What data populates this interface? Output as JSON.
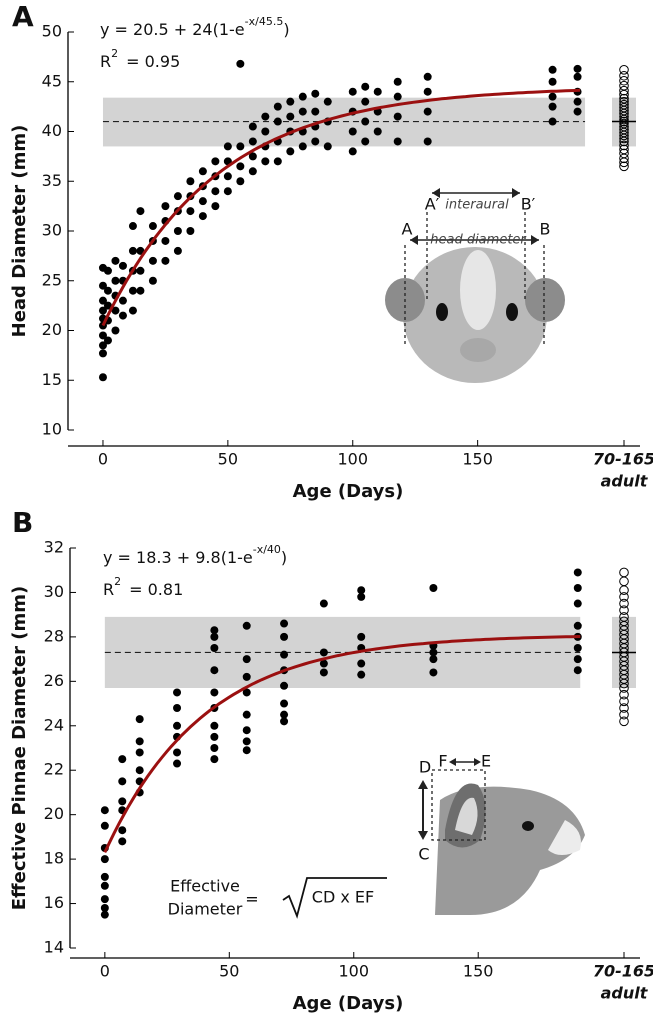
{
  "chart_data": [
    {
      "type": "scatter",
      "panel_label": "A",
      "equation": "y = 20.5 + 24(1-e",
      "equation_exp": "-x/45.5",
      "equation_end": ")",
      "r2_label": "R",
      "r2_sup": "2",
      "r2_value": "= 0.95",
      "xlabel": "Age (Days)",
      "ylabel": "Head Diameter (mm)",
      "xlim": [
        -14,
        215
      ],
      "ylim": [
        10,
        50
      ],
      "xticks": [
        0,
        50,
        100,
        150
      ],
      "yticks": [
        10,
        15,
        20,
        25,
        30,
        35,
        40,
        45,
        50
      ],
      "color": "#000000",
      "fit": {
        "a": 20.5,
        "b": 24,
        "tau": 45.5,
        "x_end": 191,
        "color": "#9b1010"
      },
      "band": {
        "mean": 41,
        "low": 38.5,
        "high": 43.4,
        "x_end": 193,
        "color": "#d3d3d3"
      },
      "adult": {
        "label": "70-165",
        "sublabel": "adult",
        "values": [
          36.5,
          36.9,
          37.3,
          37.8,
          38.2,
          38.6,
          39,
          39.3,
          39.6,
          39.9,
          40.2,
          40.5,
          40.8,
          41,
          41.2,
          41.5,
          41.8,
          42.1,
          42.4,
          42.7,
          43,
          43.3,
          43.7,
          44.1,
          44.6,
          45.1,
          45.6,
          46.2
        ]
      },
      "annotations": {
        "a": "A",
        "a_prime": "A′",
        "b": "B",
        "b_prime": "B′",
        "interaural": "interaural",
        "head_diameter": "head diameter"
      },
      "x": [
        0,
        0,
        0,
        0,
        0,
        0,
        0,
        0,
        0,
        0,
        2,
        2,
        2,
        2,
        2,
        5,
        5,
        5,
        5,
        5,
        8,
        8,
        8,
        8,
        12,
        12,
        12,
        12,
        12,
        15,
        15,
        15,
        15,
        20,
        20,
        20,
        20,
        25,
        25,
        25,
        25,
        30,
        30,
        30,
        30,
        35,
        35,
        35,
        35,
        40,
        40,
        40,
        40,
        45,
        45,
        45,
        45,
        50,
        50,
        50,
        50,
        55,
        55,
        55,
        55,
        60,
        60,
        60,
        60,
        65,
        65,
        65,
        65,
        70,
        70,
        70,
        70,
        75,
        75,
        75,
        75,
        80,
        80,
        80,
        80,
        85,
        85,
        85,
        85,
        90,
        90,
        90,
        100,
        100,
        100,
        100,
        105,
        105,
        105,
        105,
        110,
        110,
        110,
        118,
        118,
        118,
        118,
        130,
        130,
        130,
        130,
        180,
        180,
        180,
        180,
        180,
        190,
        190,
        190,
        190,
        190
      ],
      "values": [
        15.3,
        17.7,
        18.5,
        19.5,
        20.5,
        21.2,
        22,
        23,
        24.5,
        26.3,
        19,
        21,
        22.5,
        24,
        26,
        20,
        22,
        23.5,
        25,
        27,
        21.5,
        23,
        25,
        26.5,
        22,
        24,
        26,
        28,
        30.5,
        24,
        26,
        28,
        32,
        25,
        27,
        29,
        30.5,
        27,
        29,
        31,
        32.5,
        28,
        30,
        32,
        33.5,
        30,
        32,
        33.5,
        35,
        31.5,
        33,
        34.5,
        36,
        32.5,
        34,
        35.5,
        37,
        34,
        35.5,
        37,
        38.5,
        35,
        36.5,
        38.5,
        46.8,
        36,
        37.5,
        39,
        40.5,
        37,
        38.5,
        40,
        41.5,
        37,
        39,
        41,
        42.5,
        38,
        40,
        41.5,
        43,
        38.5,
        40,
        42,
        43.5,
        39,
        40.5,
        42,
        43.8,
        38.5,
        41,
        43,
        38,
        40,
        42,
        44,
        39,
        41,
        43,
        44.5,
        40,
        42,
        44,
        39,
        41.5,
        43.5,
        45,
        39,
        42,
        44,
        45.5,
        41,
        42.5,
        43.5,
        45,
        46.2,
        42,
        43,
        44,
        45.5,
        46.3
      ]
    },
    {
      "type": "scatter",
      "panel_label": "B",
      "equation": "y = 18.3 + 9.8(1-e",
      "equation_exp": "-x/40",
      "equation_end": ")",
      "r2_label": "R",
      "r2_sup": "2",
      "r2_value": "= 0.81",
      "xlabel": "Age (Days)",
      "ylabel": "Effective Pinnae Diameter (mm)",
      "xlim": [
        -14,
        215
      ],
      "ylim": [
        14,
        32
      ],
      "xticks": [
        0,
        50,
        100,
        150
      ],
      "yticks": [
        14,
        16,
        18,
        20,
        22,
        24,
        26,
        28,
        30,
        32
      ],
      "color": "#000000",
      "fit": {
        "a": 18.3,
        "b": 9.8,
        "tau": 40,
        "x_end": 191,
        "color": "#9b1010"
      },
      "band": {
        "mean": 27.3,
        "low": 25.7,
        "high": 28.9,
        "x_end": 191,
        "color": "#d3d3d3"
      },
      "adult": {
        "label": "70-165",
        "sublabel": "adult",
        "values": [
          24.2,
          24.5,
          24.8,
          25.1,
          25.4,
          25.7,
          25.9,
          26.1,
          26.3,
          26.5,
          26.7,
          26.9,
          27.1,
          27.3,
          27.5,
          27.7,
          27.9,
          28.1,
          28.3,
          28.5,
          28.7,
          28.9,
          29.2,
          29.5,
          29.8,
          30.1,
          30.5,
          30.9
        ]
      },
      "annotations": {
        "d": "D",
        "f": "F",
        "e": "E",
        "c": "C",
        "formula_word1": "Effective",
        "formula_word2": "Diameter",
        "formula_eq": "=",
        "formula_body": "CD x EF"
      },
      "x": [
        0,
        0,
        0,
        0,
        0,
        0,
        0,
        0,
        0,
        7,
        7,
        7,
        7,
        7,
        7,
        14,
        14,
        14,
        14,
        14,
        14,
        29,
        29,
        29,
        29,
        29,
        29,
        44,
        44,
        44,
        44,
        44,
        44,
        44,
        44,
        44,
        44,
        57,
        57,
        57,
        57,
        57,
        57,
        57,
        57,
        72,
        72,
        72,
        72,
        72,
        72,
        72,
        72,
        88,
        88,
        88,
        88,
        103,
        103,
        103,
        103,
        103,
        103,
        132,
        132,
        132,
        132,
        132,
        190,
        190,
        190,
        190,
        190,
        190,
        190,
        190
      ],
      "values": [
        15.5,
        15.8,
        16.2,
        16.8,
        17.2,
        18,
        18.5,
        19.5,
        20.2,
        18.8,
        19.3,
        20.2,
        20.6,
        21.5,
        22.5,
        21,
        21.5,
        22,
        22.8,
        23.3,
        24.3,
        22.3,
        22.8,
        23.5,
        24,
        24.8,
        25.5,
        22.5,
        23,
        23.5,
        24,
        24.8,
        25.5,
        26.5,
        27.5,
        28,
        28.3,
        22.9,
        23.3,
        23.8,
        24.5,
        25.5,
        26.2,
        27,
        28.5,
        24.2,
        24.5,
        25,
        25.8,
        26.5,
        27.2,
        28,
        28.6,
        26.4,
        26.8,
        27.3,
        29.5,
        26.3,
        26.8,
        27.5,
        28,
        29.8,
        30.1,
        26.4,
        27,
        27.3,
        27.6,
        30.2,
        26.5,
        27,
        27.5,
        28,
        28.5,
        29.5,
        30.2,
        30.9
      ]
    }
  ]
}
